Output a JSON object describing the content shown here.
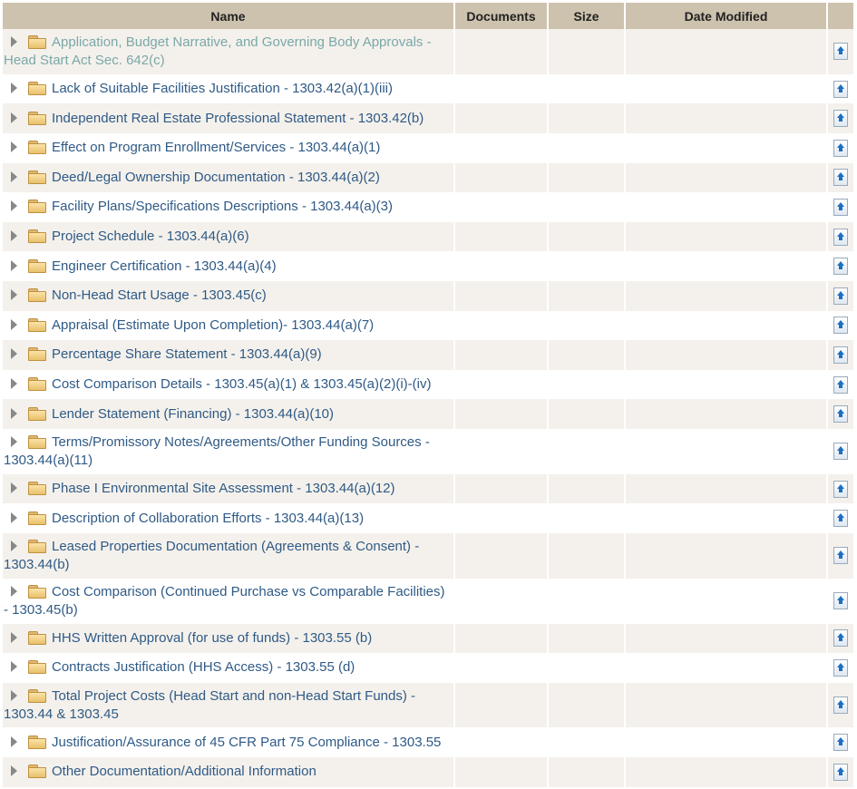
{
  "header": {
    "name": "Name",
    "documents": "Documents",
    "size": "Size",
    "date_modified": "Date Modified"
  },
  "folders": [
    {
      "label": "Application, Budget Narrative, and Governing Body Approvals - Head Start Act Sec. 642(c)",
      "lines": 2,
      "visited": true
    },
    {
      "label": "Lack of Suitable Facilities Justification - 1303.42(a)(1)(iii)",
      "lines": 1
    },
    {
      "label": "Independent Real Estate Professional Statement - 1303.42(b)",
      "lines": 1
    },
    {
      "label": "Effect on Program Enrollment/Services - 1303.44(a)(1)",
      "lines": 1
    },
    {
      "label": "Deed/Legal Ownership Documentation - 1303.44(a)(2)",
      "lines": 1
    },
    {
      "label": "Facility Plans/Specifications Descriptions - 1303.44(a)(3)",
      "lines": 1
    },
    {
      "label": "Project Schedule - 1303.44(a)(6)",
      "lines": 1
    },
    {
      "label": "Engineer Certification - 1303.44(a)(4)",
      "lines": 1
    },
    {
      "label": "Non-Head Start Usage - 1303.45(c)",
      "lines": 1
    },
    {
      "label": "Appraisal (Estimate Upon Completion)- 1303.44(a)(7)",
      "lines": 1
    },
    {
      "label": "Percentage Share Statement - 1303.44(a)(9)",
      "lines": 1
    },
    {
      "label": "Cost Comparison Details - 1303.45(a)(1) & 1303.45(a)(2)(i)-(iv)",
      "lines": 1
    },
    {
      "label": "Lender Statement (Financing) - 1303.44(a)(10)",
      "lines": 1
    },
    {
      "label": "Terms/Promissory Notes/Agreements/Other Funding Sources - 1303.44(a)(11)",
      "lines": 2
    },
    {
      "label": "Phase I Environmental Site Assessment - 1303.44(a)(12)",
      "lines": 1
    },
    {
      "label": "Description of Collaboration Efforts - 1303.44(a)(13)",
      "lines": 1
    },
    {
      "label": "Leased Properties Documentation (Agreements & Consent) - 1303.44(b)",
      "lines": 2
    },
    {
      "label": "Cost Comparison (Continued Purchase vs Comparable Facilities) - 1303.45(b)",
      "lines": 2
    },
    {
      "label": "HHS Written Approval (for use of funds) - 1303.55 (b)",
      "lines": 1
    },
    {
      "label": "Contracts Justification (HHS Access) - 1303.55 (d)",
      "lines": 1
    },
    {
      "label": "Total Project Costs (Head Start and non-Head Start Funds) - 1303.44 & 1303.45",
      "lines": 2
    },
    {
      "label": "Justification/Assurance of 45 CFR Part 75 Compliance - 1303.55",
      "lines": 1
    },
    {
      "label": "Other Documentation/Additional Information",
      "lines": 1
    }
  ],
  "icons": {
    "expand": "triangle-right-icon",
    "folder": "folder-icon",
    "upload": "upload-icon"
  },
  "colors": {
    "header_bg": "#cdc2ad",
    "row_alt_bg": "#f4f1ec",
    "link": "#2f5a86",
    "visited_link": "#7aa8a8"
  }
}
